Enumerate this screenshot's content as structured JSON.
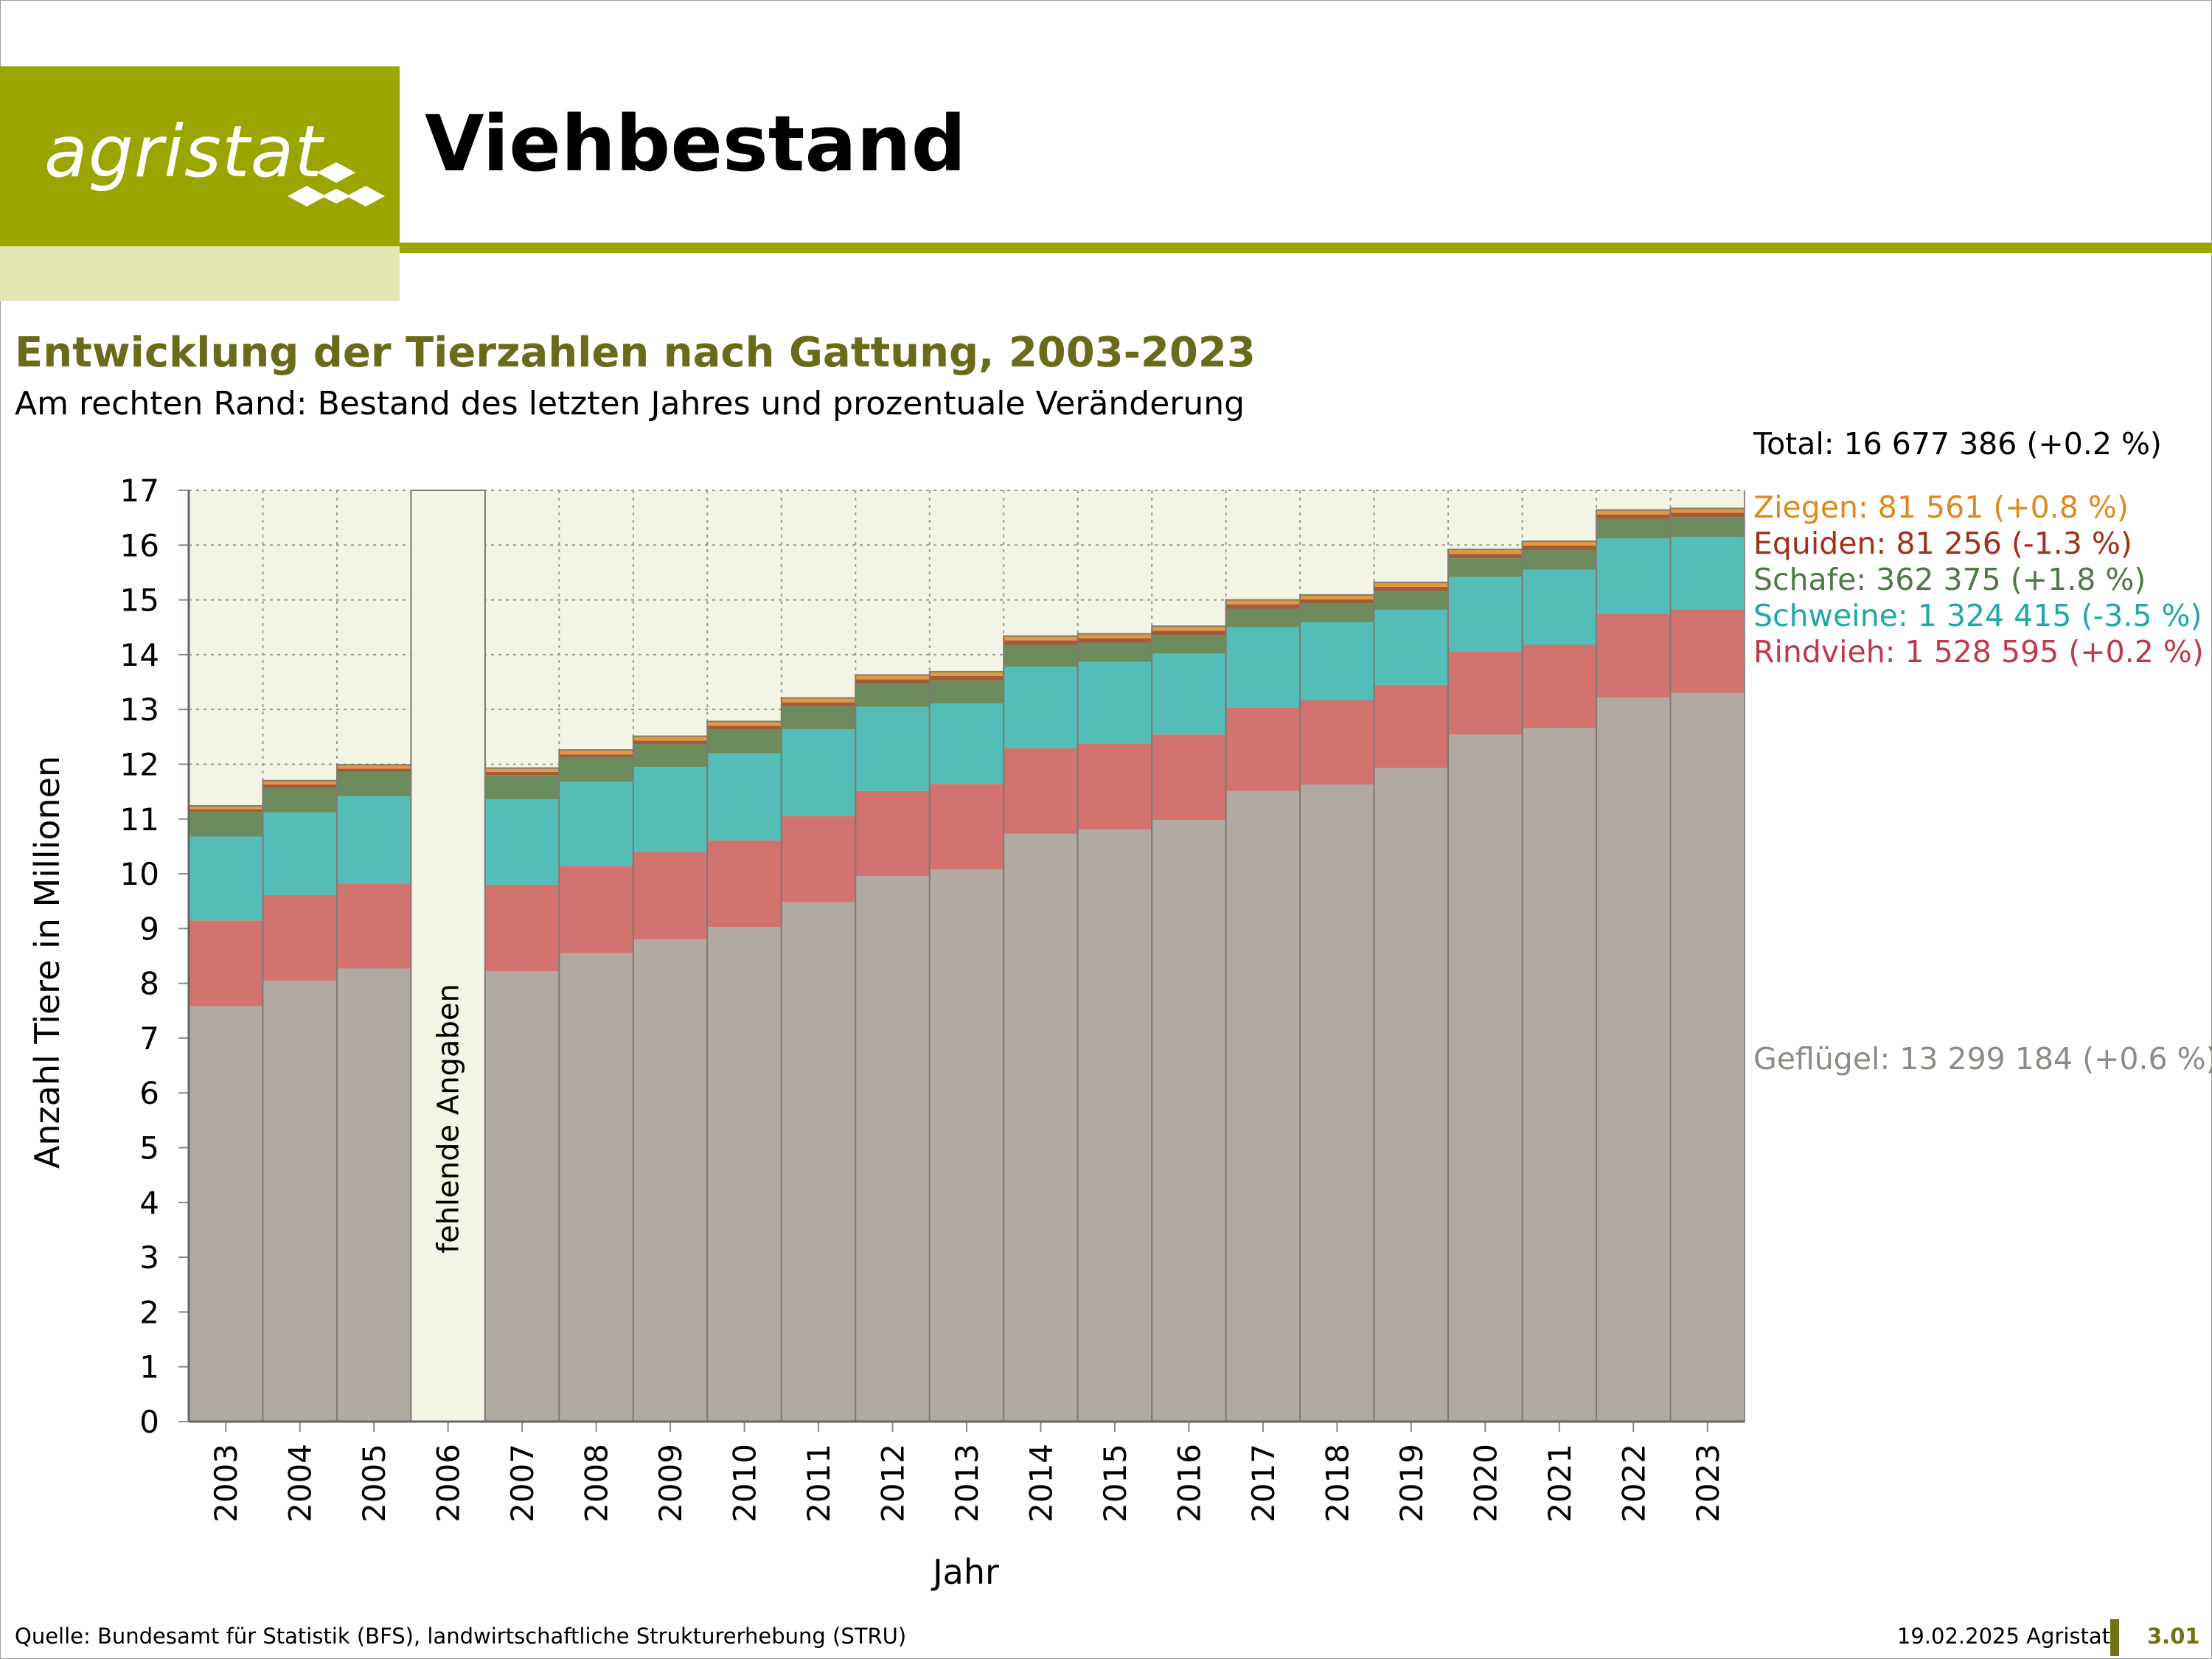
{
  "logo": {
    "text": "agristat"
  },
  "header": {
    "title": "Viehbestand"
  },
  "chart_data": {
    "type": "bar",
    "stacked": true,
    "title": "Entwicklung der Tierzahlen nach Gattung, 2003-2023",
    "subtitle": "Am rechten Rand: Bestand des letzten Jahres und prozentuale Veränderung",
    "xlabel": "Jahr",
    "ylabel": "Anzahl Tiere in Millionen",
    "ylim": [
      0,
      17
    ],
    "yticks": [
      0,
      1,
      2,
      3,
      4,
      5,
      6,
      7,
      8,
      9,
      10,
      11,
      12,
      13,
      14,
      15,
      16,
      17
    ],
    "categories": [
      "2003",
      "2004",
      "2005",
      "2006",
      "2007",
      "2008",
      "2009",
      "2010",
      "2011",
      "2012",
      "2013",
      "2014",
      "2015",
      "2016",
      "2017",
      "2018",
      "2019",
      "2020",
      "2021",
      "2022",
      "2023"
    ],
    "missing_note": "fehlende Angaben",
    "missing_category": "2006",
    "total_label": "Total: 16 677 386 (+0.2 %)",
    "series": [
      {
        "name": "Geflügel",
        "color": "#b1aaa3",
        "label_color": "#8f8a84",
        "label": "Geflügel: 13 299 184 (+0.6 %)",
        "values": [
          7.58,
          8.05,
          8.27,
          null,
          8.22,
          8.55,
          8.8,
          9.03,
          9.48,
          9.96,
          10.08,
          10.73,
          10.81,
          10.98,
          11.51,
          11.63,
          11.93,
          12.54,
          12.66,
          13.22,
          13.3
        ]
      },
      {
        "name": "Rindvieh",
        "color": "#d27370",
        "label_color": "#c0394a",
        "label": "Rindvieh: 1 528 595 (+0.2 %)",
        "values": [
          1.57,
          1.56,
          1.55,
          null,
          1.58,
          1.59,
          1.6,
          1.58,
          1.57,
          1.55,
          1.56,
          1.56,
          1.56,
          1.56,
          1.52,
          1.54,
          1.52,
          1.52,
          1.52,
          1.53,
          1.53
        ]
      },
      {
        "name": "Schweine",
        "color": "#55bdb7",
        "label_color": "#1fa8a8",
        "label": "Schweine: 1 324 415 (-3.5 %)",
        "values": [
          1.53,
          1.51,
          1.6,
          null,
          1.56,
          1.54,
          1.55,
          1.59,
          1.59,
          1.54,
          1.47,
          1.49,
          1.5,
          1.48,
          1.47,
          1.42,
          1.37,
          1.36,
          1.37,
          1.37,
          1.32
        ]
      },
      {
        "name": "Schafe",
        "color": "#6d8c5e",
        "label_color": "#4c7a44",
        "label": "Schafe: 362 375 (+1.8 %)",
        "values": [
          0.45,
          0.45,
          0.44,
          null,
          0.44,
          0.44,
          0.42,
          0.43,
          0.42,
          0.42,
          0.42,
          0.4,
          0.35,
          0.34,
          0.34,
          0.34,
          0.34,
          0.34,
          0.36,
          0.36,
          0.36
        ]
      },
      {
        "name": "Equiden",
        "color": "#a55a3c",
        "label_color": "#a0301a",
        "label": "Equiden: 81 256 (-1.3 %)",
        "values": [
          0.05,
          0.06,
          0.06,
          null,
          0.06,
          0.06,
          0.06,
          0.07,
          0.07,
          0.08,
          0.08,
          0.08,
          0.08,
          0.08,
          0.08,
          0.08,
          0.08,
          0.08,
          0.08,
          0.08,
          0.08
        ]
      },
      {
        "name": "Ziegen",
        "color": "#e39a3c",
        "label_color": "#dc8a20",
        "label": "Ziegen: 81 561 (+0.8 %)",
        "values": [
          0.06,
          0.07,
          0.07,
          null,
          0.07,
          0.08,
          0.08,
          0.08,
          0.08,
          0.08,
          0.08,
          0.08,
          0.08,
          0.08,
          0.08,
          0.08,
          0.08,
          0.08,
          0.08,
          0.08,
          0.08
        ]
      }
    ]
  },
  "footer": {
    "source": "Quelle: Bundesamt für Statistik (BFS), landwirtschaftliche Strukturerhebung (STRU)",
    "date": "19.02.2025 Agristat",
    "page_number": "3.01"
  }
}
